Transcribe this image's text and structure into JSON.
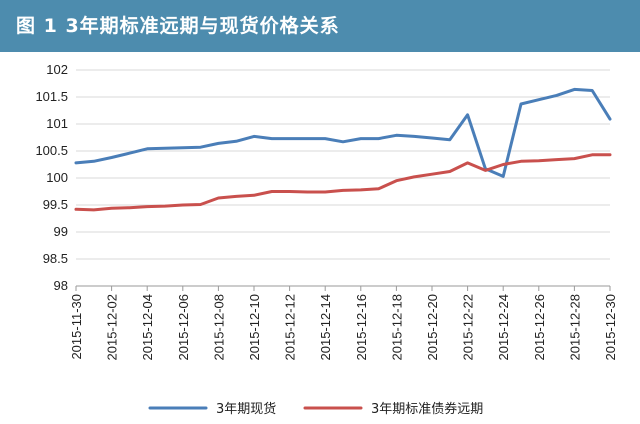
{
  "chart_data": {
    "type": "line",
    "title": "图 1 3年期标准远期与现货价格关系",
    "xlabel": "",
    "ylabel": "",
    "ylim": [
      98,
      102
    ],
    "yticks": [
      "102",
      "101.5",
      "101",
      "100.5",
      "100",
      "99.5",
      "99",
      "98.5",
      "98"
    ],
    "xtick_labels": [
      "2015-11-30",
      "2015-12-02",
      "2015-12-04",
      "2015-12-06",
      "2015-12-08",
      "2015-12-10",
      "2015-12-12",
      "2015-12-14",
      "2015-12-16",
      "2015-12-18",
      "2015-12-20",
      "2015-12-22",
      "2015-12-24",
      "2015-12-26",
      "2015-12-28",
      "2015-12-30"
    ],
    "x": [
      "2015-11-30",
      "2015-12-01",
      "2015-12-02",
      "2015-12-03",
      "2015-12-04",
      "2015-12-05",
      "2015-12-06",
      "2015-12-07",
      "2015-12-08",
      "2015-12-09",
      "2015-12-10",
      "2015-12-11",
      "2015-12-12",
      "2015-12-13",
      "2015-12-14",
      "2015-12-15",
      "2015-12-16",
      "2015-12-17",
      "2015-12-18",
      "2015-12-19",
      "2015-12-20",
      "2015-12-21",
      "2015-12-22",
      "2015-12-23",
      "2015-12-24",
      "2015-12-25",
      "2015-12-26",
      "2015-12-27",
      "2015-12-28",
      "2015-12-29",
      "2015-12-30"
    ],
    "grid": "horizontal",
    "legend": "bottom",
    "series": [
      {
        "name": "3年期现货",
        "color": "#4a7eb8",
        "values": [
          100.28,
          100.31,
          100.38,
          100.46,
          100.54,
          100.55,
          100.56,
          100.57,
          100.64,
          100.68,
          100.77,
          100.73,
          100.73,
          100.73,
          100.73,
          100.67,
          100.73,
          100.73,
          100.79,
          100.77,
          100.74,
          100.71,
          101.17,
          100.17,
          100.03,
          101.37,
          101.45,
          101.53,
          101.64,
          101.62,
          101.09
        ]
      },
      {
        "name": "3年期标准债券远期",
        "color": "#c9504d",
        "values": [
          99.42,
          99.41,
          99.44,
          99.45,
          99.47,
          99.48,
          99.5,
          99.51,
          99.63,
          99.66,
          99.68,
          99.75,
          99.75,
          99.74,
          99.74,
          99.77,
          99.78,
          99.8,
          99.95,
          100.02,
          100.07,
          100.12,
          100.28,
          100.14,
          100.25,
          100.31,
          100.32,
          100.34,
          100.36,
          100.43,
          100.43
        ]
      }
    ]
  }
}
